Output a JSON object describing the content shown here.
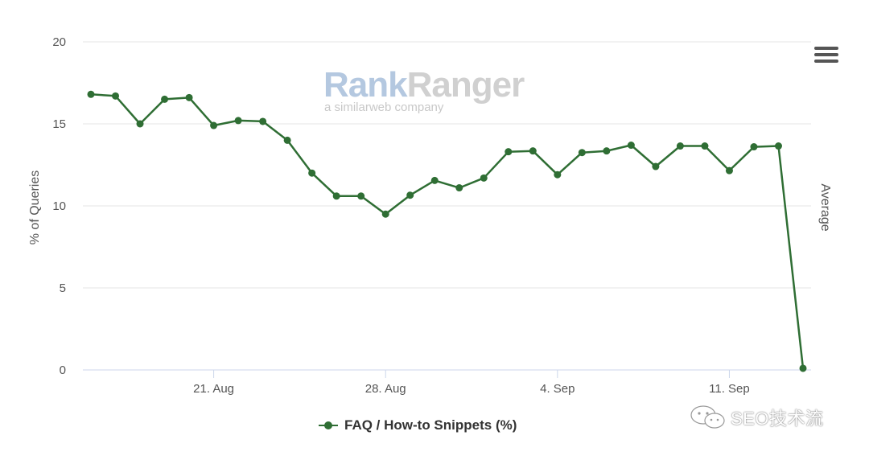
{
  "logo": {
    "brand": "RankRanger",
    "tagline": "a similarweb company"
  },
  "watermark": {
    "text": "SEO技术流",
    "icon": "wechat-icon"
  },
  "menu": {
    "icon": "hamburger-menu-icon"
  },
  "chart_data": {
    "type": "line",
    "ylabel": "% of Queries",
    "y2label": "Average",
    "ylim": [
      0,
      20
    ],
    "yticks": [
      0,
      5,
      10,
      15,
      20
    ],
    "xticks": [
      {
        "label": "21. Aug",
        "day": "2020-08-21"
      },
      {
        "label": "28. Aug",
        "day": "2020-08-28"
      },
      {
        "label": "4. Sep",
        "day": "2020-09-04"
      },
      {
        "label": "11. Sep",
        "day": "2020-09-11"
      }
    ],
    "xrange": [
      "2020-08-16",
      "2020-09-13"
    ],
    "grid": true,
    "legend_position": "bottom-center",
    "color": "#2f6e34",
    "series": [
      {
        "name": "FAQ / How-to Snippets (%)",
        "points": [
          {
            "x": "2020-08-16",
            "y": 16.8
          },
          {
            "x": "2020-08-17",
            "y": 16.7
          },
          {
            "x": "2020-08-18",
            "y": 15.0
          },
          {
            "x": "2020-08-19",
            "y": 16.5
          },
          {
            "x": "2020-08-20",
            "y": 16.6
          },
          {
            "x": "2020-08-21",
            "y": 14.9
          },
          {
            "x": "2020-08-22",
            "y": 15.2
          },
          {
            "x": "2020-08-23",
            "y": 15.15
          },
          {
            "x": "2020-08-24",
            "y": 14.0
          },
          {
            "x": "2020-08-25",
            "y": 12.0
          },
          {
            "x": "2020-08-26",
            "y": 10.6
          },
          {
            "x": "2020-08-27",
            "y": 10.6
          },
          {
            "x": "2020-08-28",
            "y": 9.5
          },
          {
            "x": "2020-08-29",
            "y": 10.65
          },
          {
            "x": "2020-08-30",
            "y": 11.55
          },
          {
            "x": "2020-08-31",
            "y": 11.1
          },
          {
            "x": "2020-09-01",
            "y": 11.7
          },
          {
            "x": "2020-09-02",
            "y": 13.3
          },
          {
            "x": "2020-09-03",
            "y": 13.35
          },
          {
            "x": "2020-09-04",
            "y": 11.9
          },
          {
            "x": "2020-09-05",
            "y": 13.25
          },
          {
            "x": "2020-09-06",
            "y": 13.35
          },
          {
            "x": "2020-09-07",
            "y": 13.7
          },
          {
            "x": "2020-09-08",
            "y": 12.4
          },
          {
            "x": "2020-09-09",
            "y": 13.65
          },
          {
            "x": "2020-09-10",
            "y": 13.65
          },
          {
            "x": "2020-09-11",
            "y": 12.15
          },
          {
            "x": "2020-09-12",
            "y": 13.6
          },
          {
            "x": "2020-09-13",
            "y": 13.65
          },
          {
            "x": "2020-09-14",
            "y": 0.1
          }
        ]
      }
    ]
  }
}
